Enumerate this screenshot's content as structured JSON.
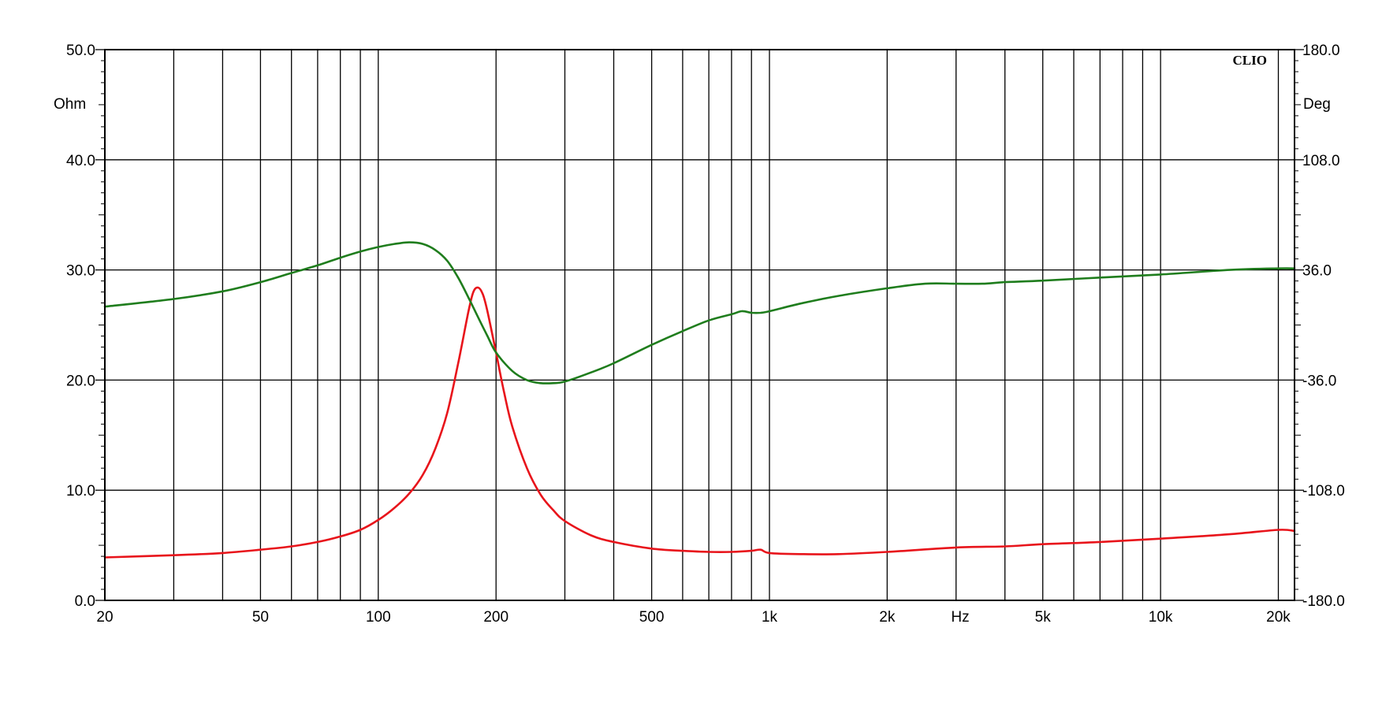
{
  "chart_data": {
    "type": "line",
    "brand": "CLIO",
    "x_axis": {
      "scale": "log",
      "range": [
        20,
        22000
      ],
      "unit_label": "Hz",
      "tick_labels": [
        {
          "value": 20,
          "label": "20"
        },
        {
          "value": 50,
          "label": "50"
        },
        {
          "value": 100,
          "label": "100"
        },
        {
          "value": 200,
          "label": "200"
        },
        {
          "value": 500,
          "label": "500"
        },
        {
          "value": 1000,
          "label": "1k"
        },
        {
          "value": 2000,
          "label": "2k"
        },
        {
          "value": 5000,
          "label": "5k"
        },
        {
          "value": 10000,
          "label": "10k"
        },
        {
          "value": 20000,
          "label": "20k"
        }
      ],
      "gridlines": [
        20,
        30,
        40,
        50,
        60,
        70,
        80,
        90,
        100,
        200,
        300,
        400,
        500,
        600,
        700,
        800,
        900,
        1000,
        2000,
        3000,
        4000,
        5000,
        6000,
        7000,
        8000,
        9000,
        10000,
        20000
      ]
    },
    "y_left": {
      "unit_label": "Ohm",
      "range": [
        0,
        50
      ],
      "ticks": [
        0,
        10,
        20,
        30,
        40,
        50
      ],
      "tick_labels": [
        "0.0",
        "10.0",
        "20.0",
        "30.0",
        "40.0",
        "50.0"
      ]
    },
    "y_right": {
      "unit_label": "Deg",
      "range": [
        -180,
        180
      ],
      "ticks": [
        -180,
        -108,
        -36,
        36,
        108,
        180
      ],
      "tick_labels": [
        "-180.0",
        "-108.0",
        "-36.0",
        "36.0",
        "108.0",
        "180.0"
      ]
    },
    "grid": true,
    "series": [
      {
        "axis": "left",
        "color": "#e8141b",
        "points": [
          [
            20,
            3.9
          ],
          [
            30,
            4.1
          ],
          [
            40,
            4.3
          ],
          [
            50,
            4.6
          ],
          [
            60,
            4.9
          ],
          [
            70,
            5.3
          ],
          [
            80,
            5.8
          ],
          [
            90,
            6.4
          ],
          [
            100,
            7.3
          ],
          [
            110,
            8.4
          ],
          [
            120,
            9.7
          ],
          [
            130,
            11.4
          ],
          [
            140,
            13.8
          ],
          [
            150,
            17.0
          ],
          [
            160,
            21.5
          ],
          [
            170,
            26.2
          ],
          [
            175,
            28.0
          ],
          [
            180,
            28.4
          ],
          [
            185,
            27.8
          ],
          [
            190,
            26.3
          ],
          [
            200,
            22.5
          ],
          [
            210,
            18.8
          ],
          [
            220,
            15.8
          ],
          [
            240,
            12.0
          ],
          [
            260,
            9.6
          ],
          [
            280,
            8.2
          ],
          [
            300,
            7.2
          ],
          [
            350,
            5.9
          ],
          [
            400,
            5.3
          ],
          [
            500,
            4.7
          ],
          [
            600,
            4.5
          ],
          [
            700,
            4.4
          ],
          [
            800,
            4.4
          ],
          [
            900,
            4.5
          ],
          [
            950,
            4.6
          ],
          [
            1000,
            4.3
          ],
          [
            1200,
            4.2
          ],
          [
            1500,
            4.2
          ],
          [
            2000,
            4.4
          ],
          [
            3000,
            4.8
          ],
          [
            4000,
            4.9
          ],
          [
            5000,
            5.1
          ],
          [
            7000,
            5.3
          ],
          [
            10000,
            5.6
          ],
          [
            15000,
            6.0
          ],
          [
            20000,
            6.4
          ],
          [
            22000,
            6.3
          ]
        ]
      },
      {
        "axis": "right",
        "color": "#1f7d1d",
        "points": [
          [
            20,
            12
          ],
          [
            30,
            17
          ],
          [
            40,
            22
          ],
          [
            50,
            28
          ],
          [
            60,
            34
          ],
          [
            70,
            39
          ],
          [
            80,
            44
          ],
          [
            90,
            48
          ],
          [
            100,
            51
          ],
          [
            110,
            53
          ],
          [
            120,
            54
          ],
          [
            130,
            53
          ],
          [
            140,
            49
          ],
          [
            150,
            42
          ],
          [
            160,
            31
          ],
          [
            170,
            18
          ],
          [
            180,
            5
          ],
          [
            190,
            -7
          ],
          [
            200,
            -18
          ],
          [
            220,
            -30
          ],
          [
            240,
            -36
          ],
          [
            260,
            -38
          ],
          [
            280,
            -38
          ],
          [
            300,
            -37
          ],
          [
            350,
            -31
          ],
          [
            400,
            -25
          ],
          [
            500,
            -13
          ],
          [
            600,
            -4
          ],
          [
            700,
            3
          ],
          [
            800,
            7
          ],
          [
            850,
            9
          ],
          [
            900,
            8
          ],
          [
            950,
            8
          ],
          [
            1000,
            9
          ],
          [
            1200,
            14
          ],
          [
            1500,
            19
          ],
          [
            2000,
            24
          ],
          [
            2500,
            27
          ],
          [
            3000,
            27
          ],
          [
            3500,
            27
          ],
          [
            4000,
            28
          ],
          [
            5000,
            29
          ],
          [
            7000,
            31
          ],
          [
            10000,
            33
          ],
          [
            15000,
            36
          ],
          [
            20000,
            37
          ],
          [
            22000,
            37
          ]
        ]
      }
    ]
  }
}
